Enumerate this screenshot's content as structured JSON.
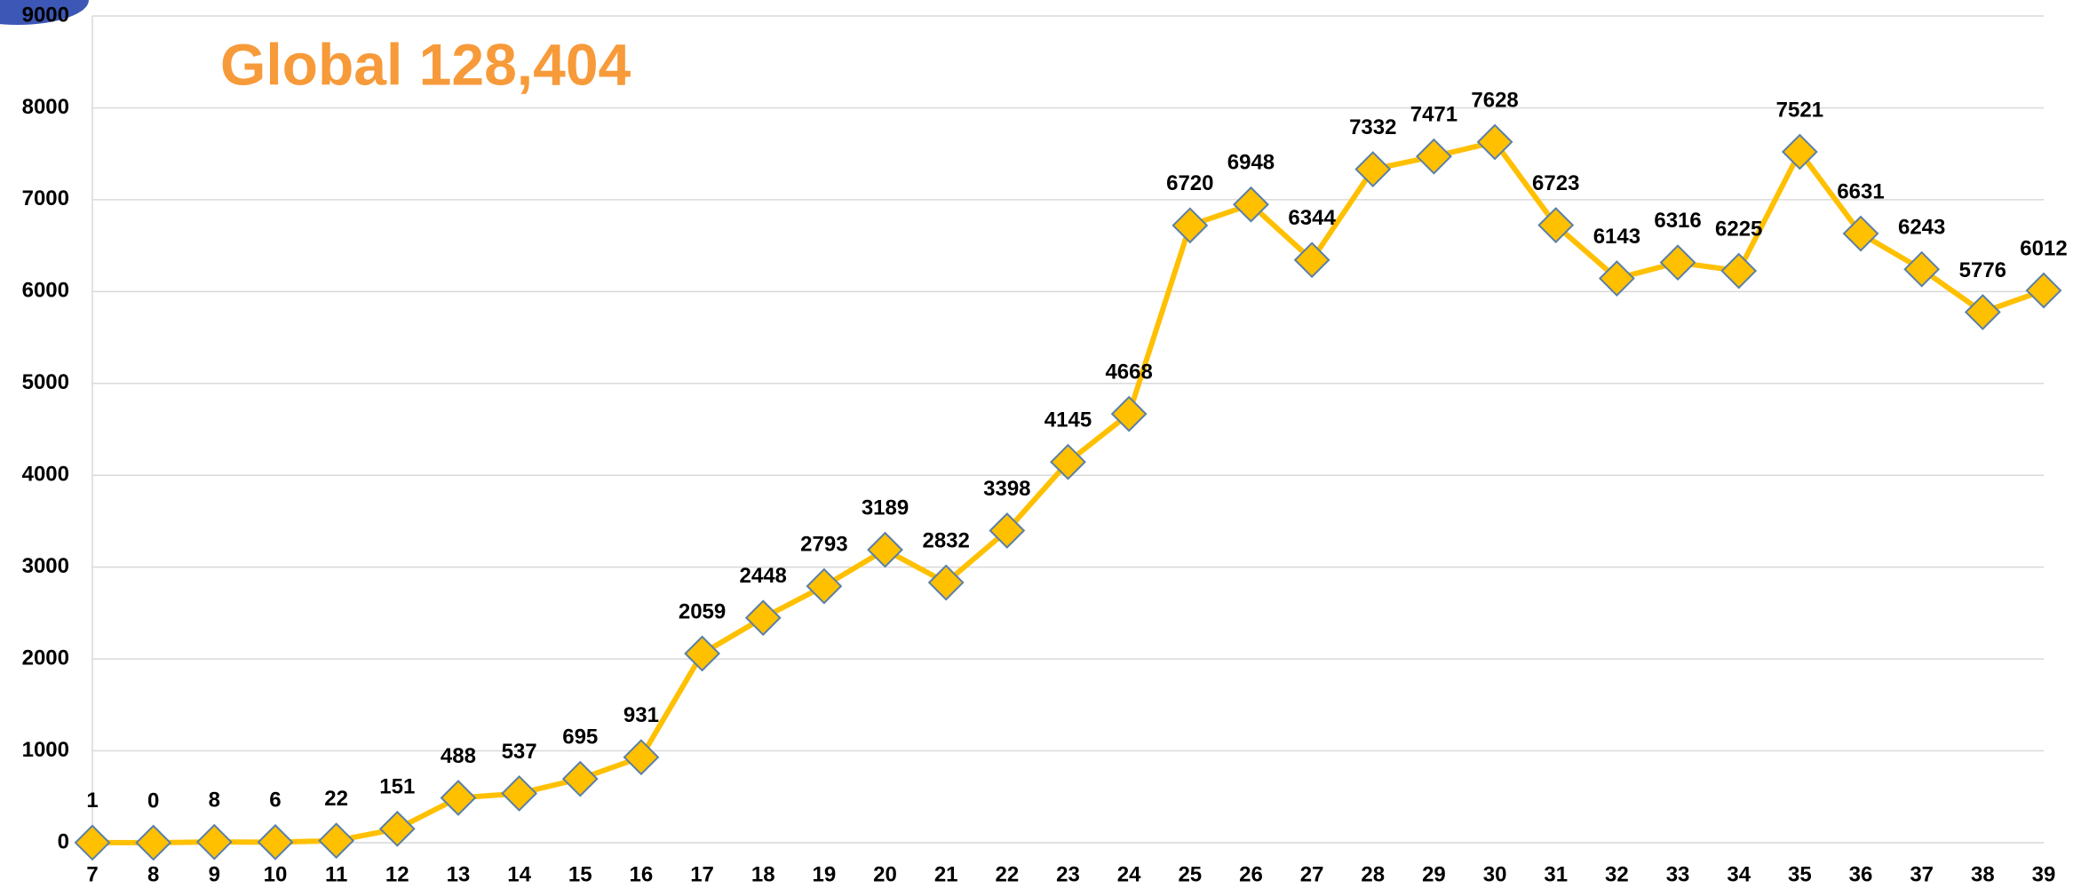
{
  "chart_data": {
    "type": "line",
    "title": "Global 128,404",
    "categories": [
      "7",
      "8",
      "9",
      "10",
      "11",
      "12",
      "13",
      "14",
      "15",
      "16",
      "17",
      "18",
      "19",
      "20",
      "21",
      "22",
      "23",
      "24",
      "25",
      "26",
      "27",
      "28",
      "29",
      "30",
      "31",
      "32",
      "33",
      "34",
      "35",
      "36",
      "37",
      "38",
      "39"
    ],
    "values": [
      1,
      0,
      8,
      6,
      22,
      151,
      488,
      537,
      695,
      931,
      2059,
      2448,
      2793,
      3189,
      2832,
      3398,
      4145,
      4668,
      6720,
      6948,
      6344,
      7332,
      7471,
      7628,
      6723,
      6143,
      6316,
      6225,
      7521,
      6631,
      6243,
      5776,
      6012
    ],
    "color": "#ffc000",
    "marker_edge_color": "#5a7fa8",
    "ylim": [
      0,
      9000
    ],
    "yticks": [
      0,
      1000,
      2000,
      3000,
      4000,
      5000,
      6000,
      7000,
      8000,
      9000
    ],
    "grid": true
  }
}
